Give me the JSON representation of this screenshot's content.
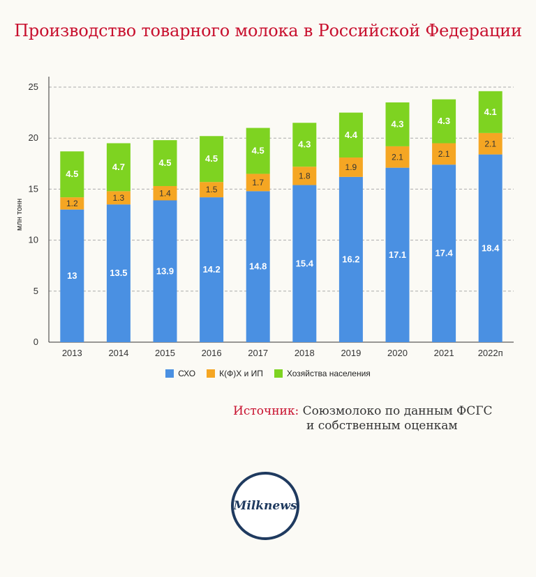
{
  "title": "Производство товарного молока в Российской Федерации",
  "source": {
    "label": "Источник:",
    "line1": "Союзмолоко по данным ФСГС",
    "line2": "и собственным оценкам"
  },
  "logo": {
    "text": "Milknews"
  },
  "colors": {
    "title": "#c8102e",
    "accent": "#c8102e"
  },
  "chart_data": {
    "type": "bar",
    "stacked": true,
    "ylabel": "млн тонн",
    "ylim": [
      0,
      25
    ],
    "yticks": [
      0,
      5,
      10,
      15,
      20,
      25
    ],
    "grid": true,
    "legend_position": "bottom",
    "categories": [
      "2013",
      "2014",
      "2015",
      "2016",
      "2017",
      "2018",
      "2019",
      "2020",
      "2021",
      "2022п"
    ],
    "series": [
      {
        "name": "СХО",
        "color": "#4a90e2",
        "values": [
          13,
          13.5,
          13.9,
          14.2,
          14.8,
          15.4,
          16.2,
          17.1,
          17.4,
          18.4
        ]
      },
      {
        "name": "К(Ф)Х и ИП",
        "color": "#f5a623",
        "values": [
          1.2,
          1.3,
          1.4,
          1.5,
          1.7,
          1.8,
          1.9,
          2.1,
          2.1,
          2.1
        ]
      },
      {
        "name": "Хозяйства населения",
        "color": "#7ed321",
        "values": [
          4.5,
          4.7,
          4.5,
          4.5,
          4.5,
          4.3,
          4.4,
          4.3,
          4.3,
          4.1
        ]
      }
    ]
  }
}
